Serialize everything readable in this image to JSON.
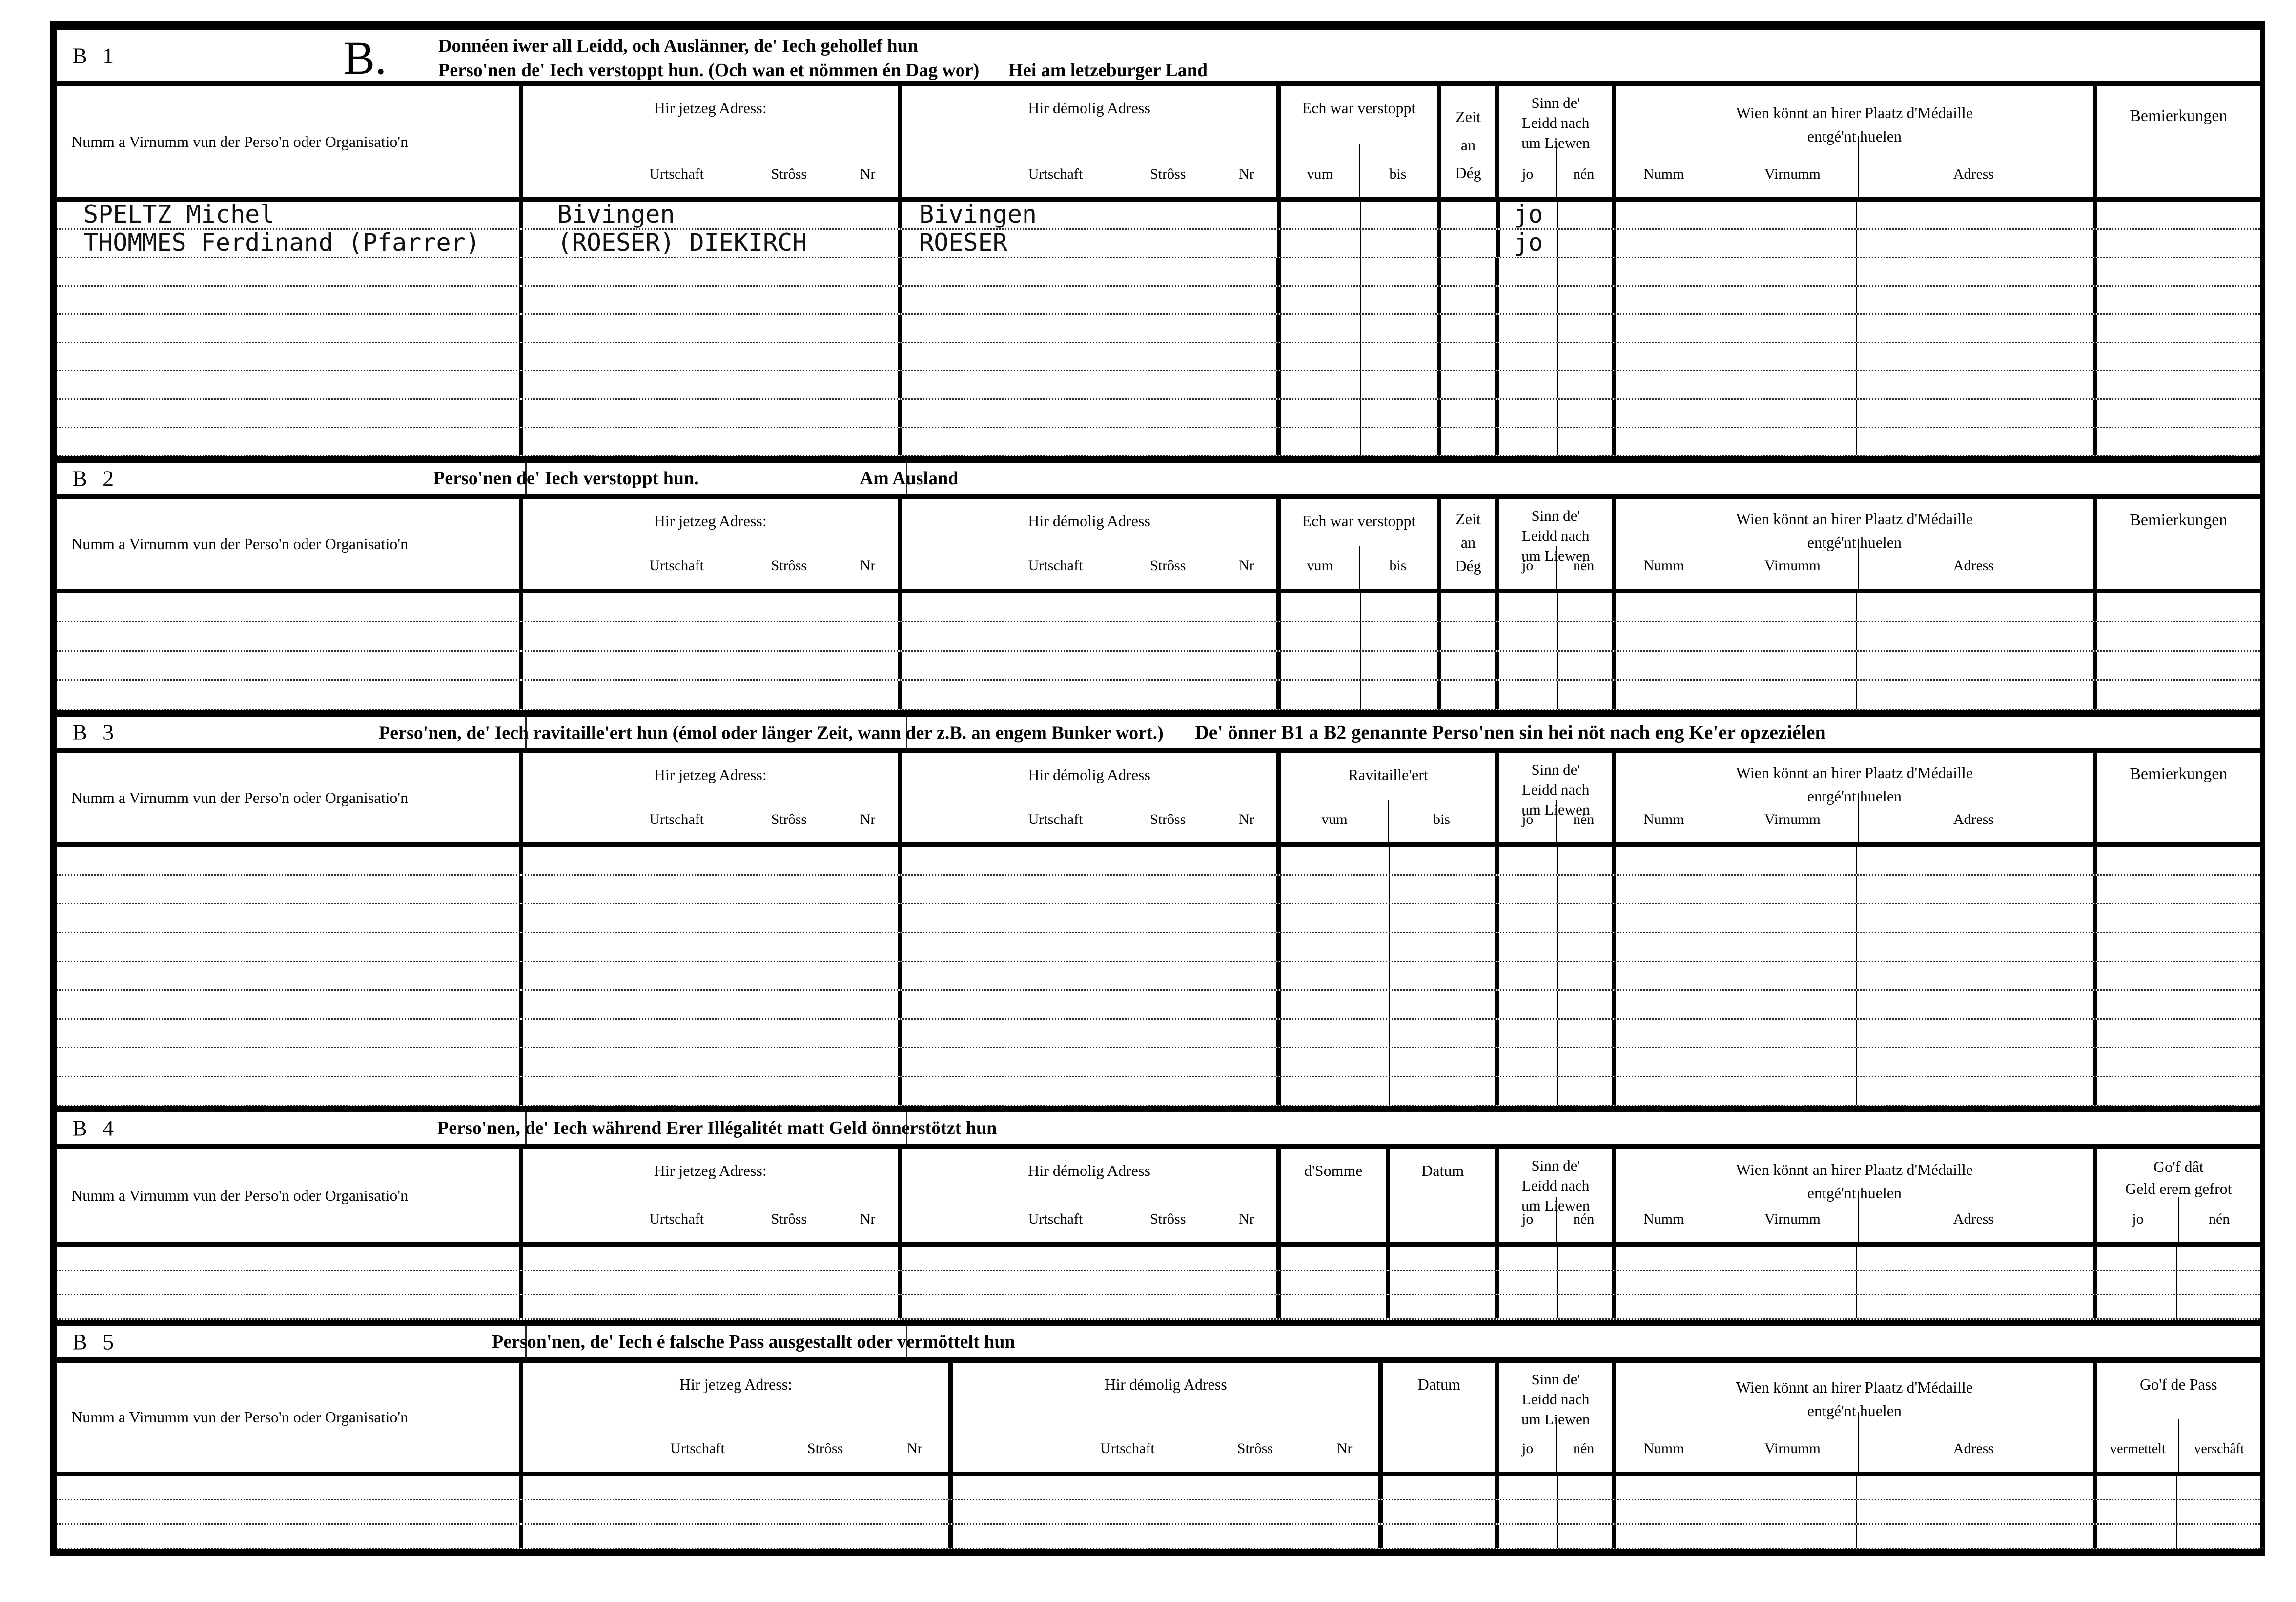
{
  "h": {
    "name_col": "Numm a Virnumm vun der Perso'n oder Organisatio'n",
    "cur_addr": "Hir jetzeg Adress:",
    "old_addr": "Hir démolig Adress",
    "urtschaft": "Urtschaft",
    "stross": "Strôss",
    "nr": "Nr",
    "verstoppt": "Ech war verstoppt",
    "vum": "vum",
    "bis": "bis",
    "zeit1": "Zeit",
    "zeit2": "an",
    "zeit3": "Dég",
    "sinn1": "Sinn de'",
    "sinn2": "Leidd nach",
    "sinn3": "um Liewen",
    "jo": "jo",
    "nen": "nén",
    "medal1": "Wien könnt an hirer Plaatz d'Médaille",
    "medal2": "entgé'nt huelen",
    "numm": "Numm",
    "virnumm": "Virnumm",
    "adress": "Adress",
    "bem": "Bemierkungen",
    "ravit": "Ravitaille'ert",
    "somme": "d'Somme",
    "datum": "Datum",
    "geld1": "Go'f dât",
    "geld2": "Geld erem gefrot",
    "pass_t": "Go'f de Pass",
    "vermettelt": "vermettelt",
    "verschaft": "verschâft"
  },
  "b1": {
    "id": "B 1",
    "letter": "B.",
    "line1": "Donnéen iwer all Leidd, och Auslänner, de' Iech gehollef hun",
    "line2": "Perso'nen de' Iech verstoppt hun. (Och wan et nömmen én Dag wor)",
    "line2b": "Hei am letzeburger Land",
    "rows": [
      {
        "name": "SPELTZ Michel",
        "cur": "Bivingen",
        "old": "Bivingen",
        "alive": "jo"
      },
      {
        "name": "THOMMES Ferdinand (Pfarrer)",
        "cur": "(ROESER) DIEKIRCH",
        "old": "ROESER",
        "alive": "jo"
      }
    ]
  },
  "b2": {
    "id": "B 2",
    "title": "Perso'nen de' Iech verstoppt hun.",
    "subtitle": "Am Ausland"
  },
  "b3": {
    "id": "B 3",
    "title": "Perso'nen, de' Iech ravitaille'ert hun (émol oder länger Zeit, wann der z.B. an engem Bunker wort.)",
    "title2": "De' önner B1 a B2 genannte Perso'nen sin hei nöt nach eng Ke'er opzeziélen"
  },
  "b4": {
    "id": "B 4",
    "title": "Perso'nen, de' Iech während Erer Illégalitét matt Geld önnerstötzt hun"
  },
  "b5": {
    "id": "B 5",
    "title": "Person'nen, de' Iech é falsche Pass ausgestallt oder  vermöttelt hun"
  }
}
